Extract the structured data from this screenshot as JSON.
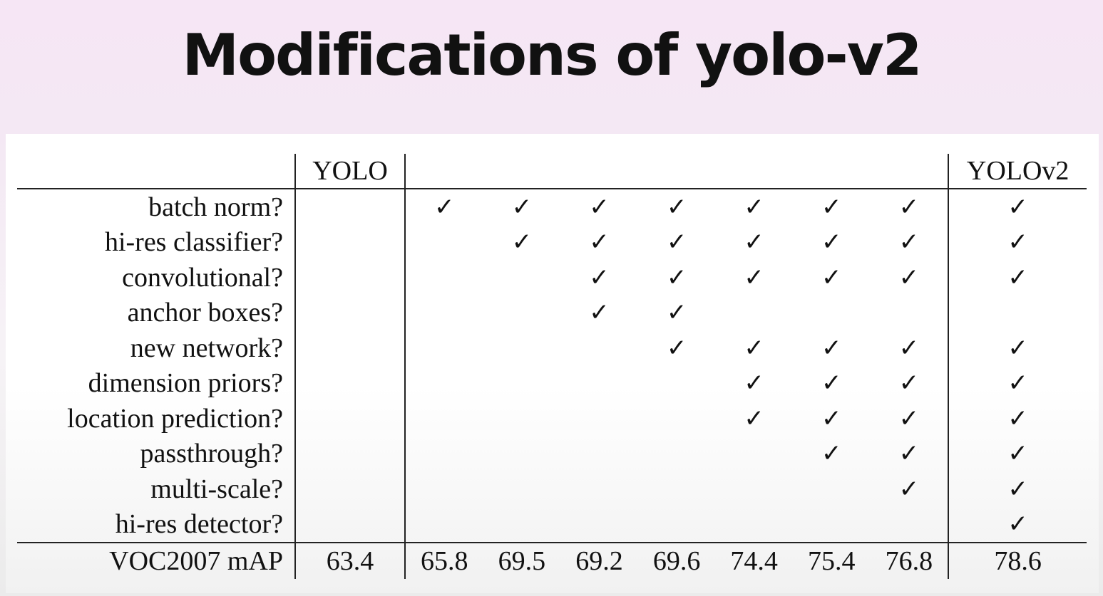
{
  "title": "Modifications of yolo-v2",
  "table": {
    "columns": [
      "YOLO",
      "",
      "",
      "",
      "",
      "",
      "",
      "",
      "YOLOv2"
    ],
    "rows": [
      {
        "label": "batch norm?",
        "cells": [
          "",
          "✓",
          "✓",
          "✓",
          "✓",
          "✓",
          "✓",
          "✓",
          "✓"
        ]
      },
      {
        "label": "hi-res classifier?",
        "cells": [
          "",
          "",
          "✓",
          "✓",
          "✓",
          "✓",
          "✓",
          "✓",
          "✓"
        ]
      },
      {
        "label": "convolutional?",
        "cells": [
          "",
          "",
          "",
          "✓",
          "✓",
          "✓",
          "✓",
          "✓",
          "✓"
        ]
      },
      {
        "label": "anchor boxes?",
        "cells": [
          "",
          "",
          "",
          "✓",
          "✓",
          "",
          "",
          "",
          ""
        ]
      },
      {
        "label": "new network?",
        "cells": [
          "",
          "",
          "",
          "",
          "✓",
          "✓",
          "✓",
          "✓",
          "✓"
        ]
      },
      {
        "label": "dimension priors?",
        "cells": [
          "",
          "",
          "",
          "",
          "",
          "✓",
          "✓",
          "✓",
          "✓"
        ]
      },
      {
        "label": "location prediction?",
        "cells": [
          "",
          "",
          "",
          "",
          "",
          "✓",
          "✓",
          "✓",
          "✓"
        ]
      },
      {
        "label": "passthrough?",
        "cells": [
          "",
          "",
          "",
          "",
          "",
          "",
          "✓",
          "✓",
          "✓"
        ]
      },
      {
        "label": "multi-scale?",
        "cells": [
          "",
          "",
          "",
          "",
          "",
          "",
          "",
          "✓",
          "✓"
        ]
      },
      {
        "label": "hi-res detector?",
        "cells": [
          "",
          "",
          "",
          "",
          "",
          "",
          "",
          "",
          "✓"
        ]
      }
    ],
    "map_row": {
      "label": "VOC2007 mAP",
      "values": [
        "63.4",
        "65.8",
        "69.5",
        "69.2",
        "69.6",
        "74.4",
        "75.4",
        "76.8",
        "78.6"
      ]
    }
  }
}
